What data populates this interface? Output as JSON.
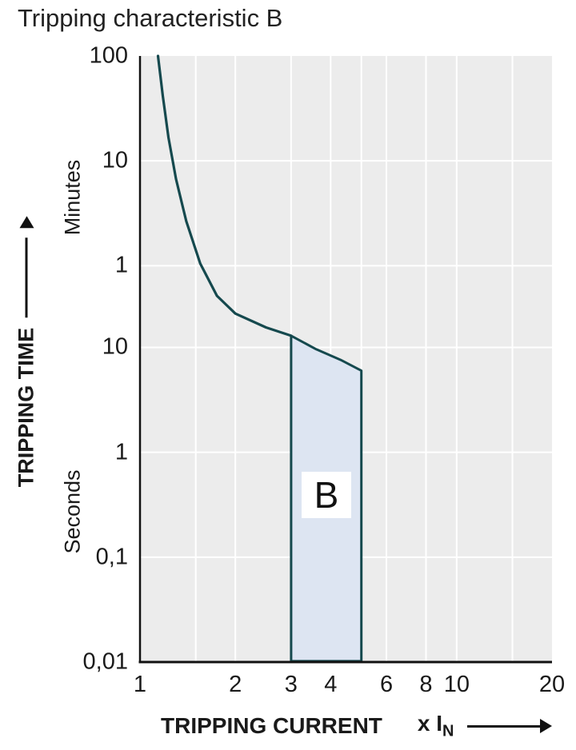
{
  "title": "Tripping characteristic B",
  "colors": {
    "curve": "#15494e",
    "band_fill": "#dde5f2",
    "plot_bg": "#ececec",
    "grid": "#ffffff",
    "axis": "#111111",
    "text": "#1a1a1a"
  },
  "y_axis": {
    "title": "TRIPPING TIME",
    "minutes_label": "Minutes",
    "seconds_label": "Seconds",
    "minutes_ticks": [
      {
        "label": "100",
        "seconds": 6000
      },
      {
        "label": "10",
        "seconds": 600
      },
      {
        "label": "1",
        "seconds": 60
      }
    ],
    "seconds_ticks": [
      {
        "label": "10",
        "seconds": 10
      },
      {
        "label": "1",
        "seconds": 1
      },
      {
        "label": "0,1",
        "seconds": 0.1
      },
      {
        "label": "0,01",
        "seconds": 0.01
      }
    ]
  },
  "x_axis": {
    "title": "TRIPPING CURRENT",
    "unit_prefix": "x I",
    "unit_sub": "N",
    "ticks": [
      {
        "label": "1",
        "value": 1
      },
      {
        "label": "2",
        "value": 2
      },
      {
        "label": "3",
        "value": 3
      },
      {
        "label": "4",
        "value": 4
      },
      {
        "label": "6",
        "value": 6
      },
      {
        "label": "8",
        "value": 8
      },
      {
        "label": "10",
        "value": 10
      },
      {
        "label": "20",
        "value": 20
      }
    ]
  },
  "band_label": "B",
  "chart_data": {
    "type": "line",
    "title": "Tripping characteristic B",
    "xlabel": "TRIPPING CURRENT x IN",
    "ylabel": "TRIPPING TIME",
    "x_scale": "log",
    "y_scale": "log",
    "x_range": [
      1,
      20
    ],
    "y_range_seconds": [
      0.01,
      6000
    ],
    "x_ticks": [
      "1",
      "2",
      "3",
      "4",
      "6",
      "8",
      "10",
      "20"
    ],
    "y_ticks_minutes": [
      "100",
      "10",
      "1"
    ],
    "y_ticks_seconds": [
      "10",
      "1",
      "0,1",
      "0,01"
    ],
    "grid_x": [
      1.5,
      2,
      3,
      4,
      5,
      6,
      8,
      10,
      15
    ],
    "grid_y_seconds": [
      600,
      60,
      10,
      1,
      0.1
    ],
    "series": [
      {
        "name": "thermal-trip-curve",
        "points_x_t_seconds": [
          [
            1.14,
            6000
          ],
          [
            1.18,
            2500
          ],
          [
            1.23,
            1000
          ],
          [
            1.3,
            400
          ],
          [
            1.4,
            160
          ],
          [
            1.55,
            63
          ],
          [
            1.75,
            31
          ],
          [
            2.0,
            21
          ],
          [
            2.5,
            15.5
          ],
          [
            3.0,
            12.9
          ]
        ]
      }
    ],
    "band": {
      "label": "B",
      "x_left": 3,
      "x_right": 5,
      "top_edge_points_x_t": [
        [
          3,
          12.9
        ],
        [
          3.6,
          9.6
        ],
        [
          4.3,
          7.6
        ],
        [
          5,
          6.0
        ]
      ],
      "t_bottom": 0.0102
    },
    "legend": "none",
    "grid": "on"
  }
}
